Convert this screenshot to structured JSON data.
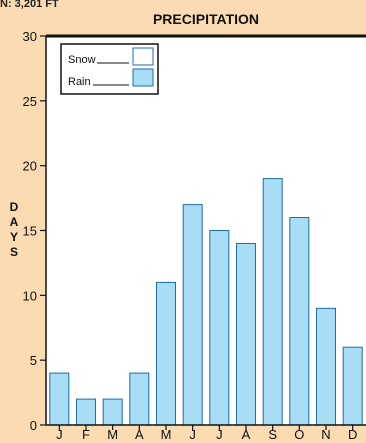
{
  "header": {
    "corner_text": "N: 3,201 FT"
  },
  "chart_data": {
    "type": "bar",
    "title": "PRECIPITATION",
    "ylabel": "DAYS",
    "xlabel": "",
    "categories": [
      "J",
      "F",
      "M",
      "A",
      "M",
      "J",
      "J",
      "A",
      "S",
      "O",
      "N",
      "D"
    ],
    "series": [
      {
        "name": "Snow",
        "values": [
          0,
          0,
          0,
          0,
          0,
          0,
          0,
          0,
          0,
          0,
          0,
          0
        ],
        "color": "#ffffff"
      },
      {
        "name": "Rain",
        "values": [
          4,
          2,
          2,
          4,
          11,
          17,
          15,
          14,
          19,
          16,
          9,
          6
        ],
        "color": "#a9dcf5"
      }
    ],
    "ylim": [
      0,
      30
    ],
    "yticks": [
      0,
      5,
      10,
      15,
      20,
      25,
      30
    ],
    "grid": false,
    "legend_position": "top-left",
    "colors": {
      "background": "#fbdcb2",
      "plot_background": "#ffffff",
      "bar_stroke": "#1a6fa6",
      "axis": "#111111"
    }
  }
}
